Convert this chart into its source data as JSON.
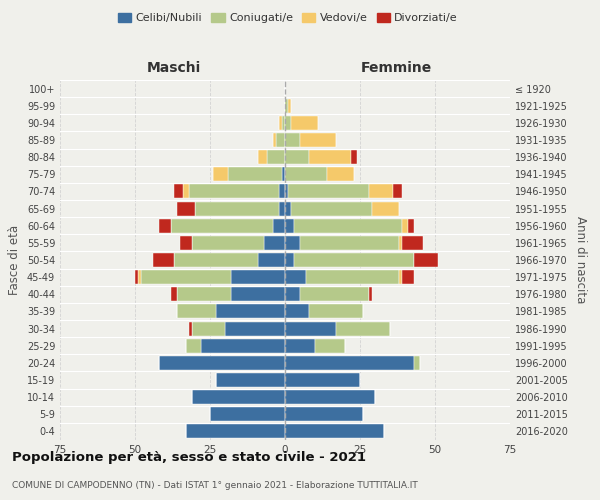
{
  "age_groups": [
    "0-4",
    "5-9",
    "10-14",
    "15-19",
    "20-24",
    "25-29",
    "30-34",
    "35-39",
    "40-44",
    "45-49",
    "50-54",
    "55-59",
    "60-64",
    "65-69",
    "70-74",
    "75-79",
    "80-84",
    "85-89",
    "90-94",
    "95-99",
    "100+"
  ],
  "birth_years": [
    "2016-2020",
    "2011-2015",
    "2006-2010",
    "2001-2005",
    "1996-2000",
    "1991-1995",
    "1986-1990",
    "1981-1985",
    "1976-1980",
    "1971-1975",
    "1966-1970",
    "1961-1965",
    "1956-1960",
    "1951-1955",
    "1946-1950",
    "1941-1945",
    "1936-1940",
    "1931-1935",
    "1926-1930",
    "1921-1925",
    "≤ 1920"
  ],
  "male": {
    "celibi": [
      33,
      25,
      31,
      23,
      42,
      28,
      20,
      23,
      18,
      18,
      9,
      7,
      4,
      2,
      2,
      1,
      0,
      0,
      0,
      0,
      0
    ],
    "coniugati": [
      0,
      0,
      0,
      0,
      0,
      5,
      11,
      13,
      18,
      30,
      28,
      24,
      34,
      28,
      30,
      18,
      6,
      3,
      1,
      0,
      0
    ],
    "vedovi": [
      0,
      0,
      0,
      0,
      0,
      0,
      0,
      0,
      0,
      1,
      0,
      0,
      0,
      0,
      2,
      5,
      3,
      1,
      1,
      0,
      0
    ],
    "divorziati": [
      0,
      0,
      0,
      0,
      0,
      0,
      1,
      0,
      2,
      1,
      7,
      4,
      4,
      6,
      3,
      0,
      0,
      0,
      0,
      0,
      0
    ]
  },
  "female": {
    "nubili": [
      33,
      26,
      30,
      25,
      43,
      10,
      17,
      8,
      5,
      7,
      3,
      5,
      3,
      2,
      1,
      0,
      0,
      0,
      0,
      0,
      0
    ],
    "coniugate": [
      0,
      0,
      0,
      0,
      2,
      10,
      18,
      18,
      23,
      31,
      40,
      33,
      36,
      27,
      27,
      14,
      8,
      5,
      2,
      1,
      0
    ],
    "vedove": [
      0,
      0,
      0,
      0,
      0,
      0,
      0,
      0,
      0,
      1,
      0,
      1,
      2,
      9,
      8,
      9,
      14,
      12,
      9,
      1,
      0
    ],
    "divorziate": [
      0,
      0,
      0,
      0,
      0,
      0,
      0,
      0,
      1,
      4,
      8,
      7,
      2,
      0,
      3,
      0,
      2,
      0,
      0,
      0,
      0
    ]
  },
  "colors": {
    "celibi": "#3d6fa0",
    "coniugati": "#b5c98a",
    "vedovi": "#f5c96a",
    "divorziati": "#c0281e"
  },
  "title": "Popolazione per età, sesso e stato civile - 2021",
  "subtitle": "COMUNE DI CAMPODENNO (TN) - Dati ISTAT 1° gennaio 2021 - Elaborazione TUTTITALIA.IT",
  "xlabel_left": "Maschi",
  "xlabel_right": "Femmine",
  "ylabel_left": "Fasce di età",
  "ylabel_right": "Anni di nascita",
  "xlim": 75,
  "legend_labels": [
    "Celibi/Nubili",
    "Coniugati/e",
    "Vedovi/e",
    "Divorziati/e"
  ],
  "background_color": "#f0f0eb"
}
